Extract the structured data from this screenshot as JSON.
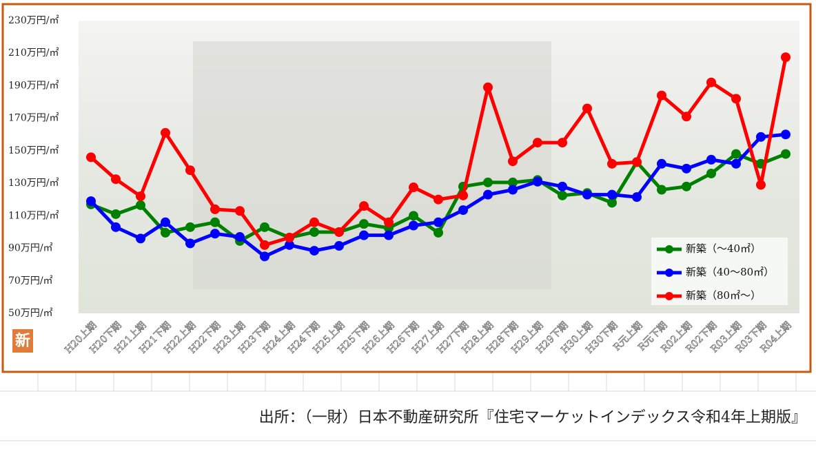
{
  "chart_data": {
    "type": "line",
    "categories": [
      "H20上期",
      "H20下期",
      "H21上期",
      "H21下期",
      "H22上期",
      "H22下期",
      "H23上期",
      "H23下期",
      "H24上期",
      "H24下期",
      "H25上期",
      "H25下期",
      "H26上期",
      "H26下期",
      "H27上期",
      "H27下期",
      "H28上期",
      "H28下期",
      "H29上期",
      "H29下期",
      "H30上期",
      "H30下期",
      "R元上期",
      "R元下期",
      "R02上期",
      "R02下期",
      "R03上期",
      "R03下期",
      "R04上期"
    ],
    "series": [
      {
        "name": "新築（～40㎡）",
        "color": "#008000",
        "values": [
          117,
          111,
          116.5,
          99.6,
          103,
          106,
          94.5,
          103,
          96.6,
          100,
          100,
          105,
          102.5,
          110,
          99.6,
          128,
          130.5,
          130.5,
          132,
          122.5,
          124,
          118,
          143,
          126,
          128,
          136,
          148,
          142,
          148
        ]
      },
      {
        "name": "新築（40～80㎡）",
        "color": "#0000ff",
        "values": [
          119,
          103,
          96,
          106,
          93,
          99,
          97,
          85,
          92,
          88.5,
          91.5,
          98,
          98,
          104,
          106,
          113.5,
          123,
          126,
          131,
          128,
          123,
          123,
          121.5,
          142,
          139,
          144.5,
          142,
          158.5,
          160
        ]
      },
      {
        "name": "新築（80㎡～）",
        "color": "#ff0000",
        "values": [
          146,
          132.5,
          122,
          161,
          138,
          114,
          113,
          92,
          96.6,
          106,
          100,
          116,
          106,
          127.5,
          120,
          122.5,
          189,
          143.5,
          155,
          155,
          176,
          142,
          143,
          184,
          171,
          192,
          182,
          129,
          207.5
        ]
      }
    ],
    "ylim": [
      50,
      230
    ],
    "yticks": [
      {
        "value": 50,
        "label": "50万円/㎡"
      },
      {
        "value": 70,
        "label": "70万円/㎡"
      },
      {
        "value": 90,
        "label": "90万円/㎡"
      },
      {
        "value": 110,
        "label": "110万円/㎡"
      },
      {
        "value": 130,
        "label": "130万円/㎡"
      },
      {
        "value": 150,
        "label": "150万円/㎡"
      },
      {
        "value": 170,
        "label": "170万円/㎡"
      },
      {
        "value": 190,
        "label": "190万円/㎡"
      },
      {
        "value": 210,
        "label": "210万円/㎡"
      },
      {
        "value": 230,
        "label": "230万円/㎡"
      }
    ],
    "grid": false,
    "legend": "lower right",
    "badge": "新",
    "source": "出所：（一財）日本不動産研究所『住宅マーケットインデックス令和4年上期版』"
  }
}
